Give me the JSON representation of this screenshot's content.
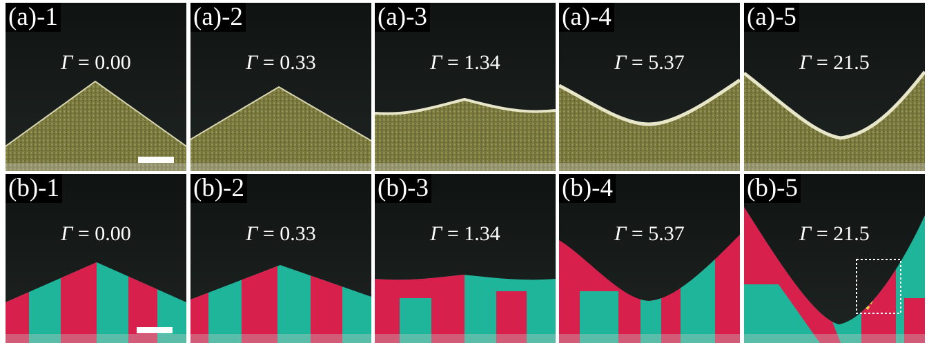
{
  "figure": {
    "row_a": [
      {
        "label": "(a)-1",
        "gamma_symbol": "Γ",
        "gamma_value": "= 0.00",
        "type": "peak",
        "level": 0.52
      },
      {
        "label": "(a)-2",
        "gamma_symbol": "Γ",
        "gamma_value": "= 0.33",
        "type": "peak",
        "level": 0.55
      },
      {
        "label": "(a)-3",
        "gamma_symbol": "Γ",
        "gamma_value": "= 1.34",
        "type": "flat",
        "level": 0.6
      },
      {
        "label": "(a)-4",
        "gamma_symbol": "Γ",
        "gamma_value": "= 5.37",
        "type": "valley",
        "level": 0.5
      },
      {
        "label": "(a)-5",
        "gamma_symbol": "Γ",
        "gamma_value": "= 21.5",
        "type": "deep-valley",
        "level": 0.5
      }
    ],
    "row_b": [
      {
        "label": "(b)-1",
        "gamma_symbol": "Γ",
        "gamma_value": "= 0.00",
        "type": "peak",
        "level": 0.52
      },
      {
        "label": "(b)-2",
        "gamma_symbol": "Γ",
        "gamma_value": "= 0.33",
        "type": "peak",
        "level": 0.55
      },
      {
        "label": "(b)-3",
        "gamma_symbol": "Γ",
        "gamma_value": "= 1.34",
        "type": "flat",
        "level": 0.6
      },
      {
        "label": "(b)-4",
        "gamma_symbol": "Γ",
        "gamma_value": "= 5.37",
        "type": "valley",
        "level": 0.5
      },
      {
        "label": "(b)-5",
        "gamma_symbol": "Γ",
        "gamma_value": "= 21.5",
        "type": "deep-valley",
        "level": 0.5
      }
    ],
    "colors": {
      "background": "#1a1d1c",
      "sand": "#8c8a4a",
      "sand_dark": "#5e5c30",
      "sand_edge": "#e8e6c8",
      "red": "#d8204c",
      "teal": "#1fb59a",
      "label_bg": "#000000",
      "label_text": "#ffffff"
    }
  }
}
